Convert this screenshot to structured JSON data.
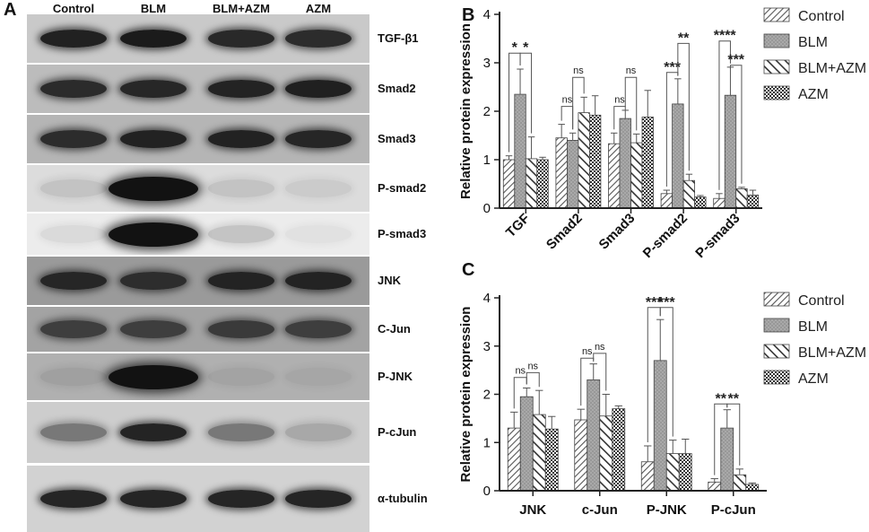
{
  "panels": {
    "a": "A",
    "b": "B",
    "c": "C"
  },
  "blot": {
    "lanes": [
      "Control",
      "BLM",
      "BLM+AZM",
      "AZM"
    ],
    "strips": [
      {
        "label": "TGF-β1",
        "bg": "#c9c9c9",
        "intensity": [
          0.92,
          0.95,
          0.88,
          0.86
        ]
      },
      {
        "label": "Smad2",
        "bg": "#bcbcbc",
        "intensity": [
          0.85,
          0.88,
          0.9,
          0.92
        ]
      },
      {
        "label": "Smad3",
        "bg": "#b5b5b5",
        "intensity": [
          0.84,
          0.9,
          0.9,
          0.88
        ]
      },
      {
        "label": "P-smad2",
        "bg": "#dcdcdc",
        "intensity": [
          0.12,
          1.0,
          0.12,
          0.08
        ]
      },
      {
        "label": "P-smad3",
        "bg": "#ececec",
        "intensity": [
          0.08,
          1.0,
          0.18,
          0.05
        ]
      },
      {
        "label": "JNK",
        "bg": "#9a9a9a",
        "intensity": [
          0.85,
          0.8,
          0.88,
          0.88
        ]
      },
      {
        "label": "C-Jun",
        "bg": "#a3a3a3",
        "intensity": [
          0.7,
          0.7,
          0.72,
          0.7
        ]
      },
      {
        "label": "P-JNK",
        "bg": "#b0b0b0",
        "intensity": [
          0.1,
          1.0,
          0.08,
          0.06
        ]
      },
      {
        "label": "P-cJun",
        "bg": "#cdcdcd",
        "intensity": [
          0.45,
          0.9,
          0.45,
          0.2
        ]
      },
      {
        "label": "α-tubulin",
        "bg": "#d2d2d2",
        "intensity": [
          0.9,
          0.9,
          0.9,
          0.9
        ]
      }
    ]
  },
  "chart_data": [
    {
      "type": "bar",
      "panel": "B",
      "ylabel": "Relative protein expression",
      "xlabel": "",
      "ylim": [
        0,
        4
      ],
      "yticks": [
        "0",
        "1",
        "2",
        "3",
        "4"
      ],
      "categories": [
        "TGF",
        "Smad2",
        "Smad3",
        "P-smad2",
        "P-smad3"
      ],
      "series": [
        {
          "name": "Control",
          "values": [
            1.0,
            1.45,
            1.33,
            0.3,
            0.2
          ],
          "errors": [
            0.08,
            0.28,
            0.22,
            0.07,
            0.1
          ]
        },
        {
          "name": "BLM",
          "values": [
            2.35,
            1.4,
            1.85,
            2.15,
            2.33
          ],
          "errors": [
            0.52,
            0.15,
            0.17,
            0.52,
            0.58
          ]
        },
        {
          "name": "BLM+AZM",
          "values": [
            1.02,
            1.97,
            1.35,
            0.57,
            0.4
          ],
          "errors": [
            0.45,
            0.32,
            0.18,
            0.13,
            0.03
          ]
        },
        {
          "name": "AZM",
          "values": [
            1.0,
            1.92,
            1.88,
            0.23,
            0.27
          ],
          "errors": [
            0.05,
            0.4,
            0.55,
            0.03,
            0.1
          ]
        }
      ],
      "annotations": [
        {
          "text": "*",
          "cat": 0,
          "from": 0,
          "to": 1,
          "level": 3.2
        },
        {
          "text": "*",
          "cat": 0,
          "from": 1,
          "to": 2,
          "level": 3.2
        },
        {
          "text": "ns",
          "cat": 1,
          "from": 0,
          "to": 1,
          "level": 2.1
        },
        {
          "text": "ns",
          "cat": 1,
          "from": 1,
          "to": 2,
          "level": 2.7
        },
        {
          "text": "ns",
          "cat": 2,
          "from": 0,
          "to": 1,
          "level": 2.1
        },
        {
          "text": "ns",
          "cat": 2,
          "from": 1,
          "to": 2,
          "level": 2.7
        },
        {
          "text": "***",
          "cat": 3,
          "from": 0,
          "to": 1,
          "level": 2.8
        },
        {
          "text": "**",
          "cat": 3,
          "from": 1,
          "to": 2,
          "level": 3.4
        },
        {
          "text": "****",
          "cat": 4,
          "from": 0,
          "to": 1,
          "level": 3.45
        },
        {
          "text": "***",
          "cat": 4,
          "from": 1,
          "to": 2,
          "level": 2.95
        }
      ]
    },
    {
      "type": "bar",
      "panel": "C",
      "ylabel": "Relative protein expression",
      "xlabel": "",
      "ylim": [
        0,
        4
      ],
      "yticks": [
        "0",
        "1",
        "2",
        "3",
        "4"
      ],
      "categories": [
        "JNK",
        "c-Jun",
        "P-JNK",
        "P-cJun"
      ],
      "series": [
        {
          "name": "Control",
          "values": [
            1.3,
            1.47,
            0.6,
            0.18
          ],
          "errors": [
            0.33,
            0.22,
            0.33,
            0.07
          ]
        },
        {
          "name": "BLM",
          "values": [
            1.95,
            2.3,
            2.7,
            1.3
          ],
          "errors": [
            0.18,
            0.33,
            0.85,
            0.38
          ]
        },
        {
          "name": "BLM+AZM",
          "values": [
            1.58,
            1.55,
            0.77,
            0.33
          ],
          "errors": [
            0.5,
            0.45,
            0.28,
            0.12
          ]
        },
        {
          "name": "AZM",
          "values": [
            1.28,
            1.7,
            0.77,
            0.13
          ],
          "errors": [
            0.26,
            0.06,
            0.3,
            0.03
          ]
        }
      ],
      "annotations": [
        {
          "text": "ns",
          "cat": 0,
          "from": 0,
          "to": 1,
          "level": 2.35
        },
        {
          "text": "ns",
          "cat": 0,
          "from": 1,
          "to": 2,
          "level": 2.45
        },
        {
          "text": "ns",
          "cat": 1,
          "from": 0,
          "to": 1,
          "level": 2.75
        },
        {
          "text": "ns",
          "cat": 1,
          "from": 1,
          "to": 2,
          "level": 2.85
        },
        {
          "text": "***",
          "cat": 2,
          "from": 0,
          "to": 1,
          "level": 3.8
        },
        {
          "text": "***",
          "cat": 2,
          "from": 1,
          "to": 2,
          "level": 3.8
        },
        {
          "text": "**",
          "cat": 3,
          "from": 0,
          "to": 1,
          "level": 1.8
        },
        {
          "text": "**",
          "cat": 3,
          "from": 1,
          "to": 2,
          "level": 1.8
        }
      ]
    }
  ]
}
